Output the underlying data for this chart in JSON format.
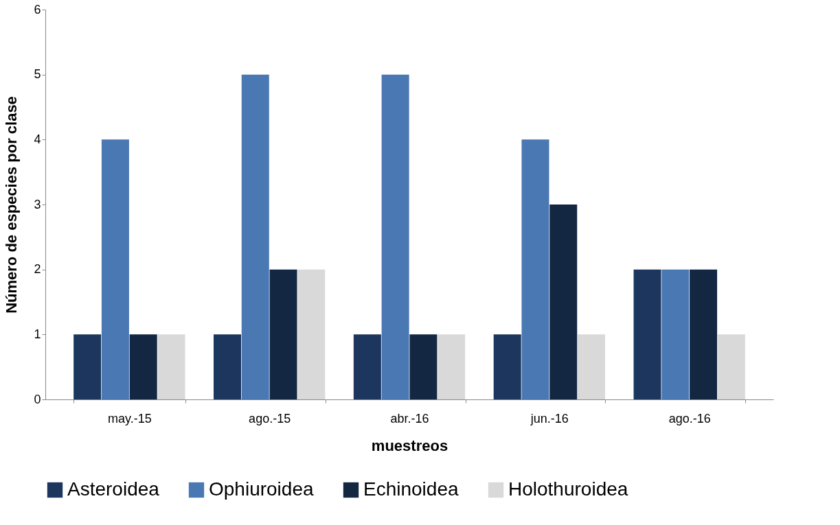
{
  "chart_data": {
    "type": "bar",
    "xlabel": "muestreos",
    "ylabel": "Número  de especies por clase",
    "categories": [
      "may.-15",
      "ago.-15",
      "abr.-16",
      "jun.-16",
      "ago.-16"
    ],
    "series": [
      {
        "name": "Asteroidea",
        "color": "#1c365e",
        "values": [
          1,
          1,
          1,
          1,
          2
        ]
      },
      {
        "name": "Ophiuroidea",
        "color": "#4a78b3",
        "values": [
          4,
          5,
          5,
          4,
          2
        ]
      },
      {
        "name": "Echinoidea",
        "color": "#132743",
        "values": [
          1,
          2,
          1,
          3,
          2
        ]
      },
      {
        "name": "Holothuroidea",
        "color": "#d9d9d9",
        "values": [
          1,
          2,
          1,
          1,
          1
        ]
      }
    ],
    "ylim": [
      0,
      6
    ],
    "yticks": [
      0,
      1,
      2,
      3,
      4,
      5,
      6
    ],
    "grid": false,
    "legend": "bottom"
  }
}
